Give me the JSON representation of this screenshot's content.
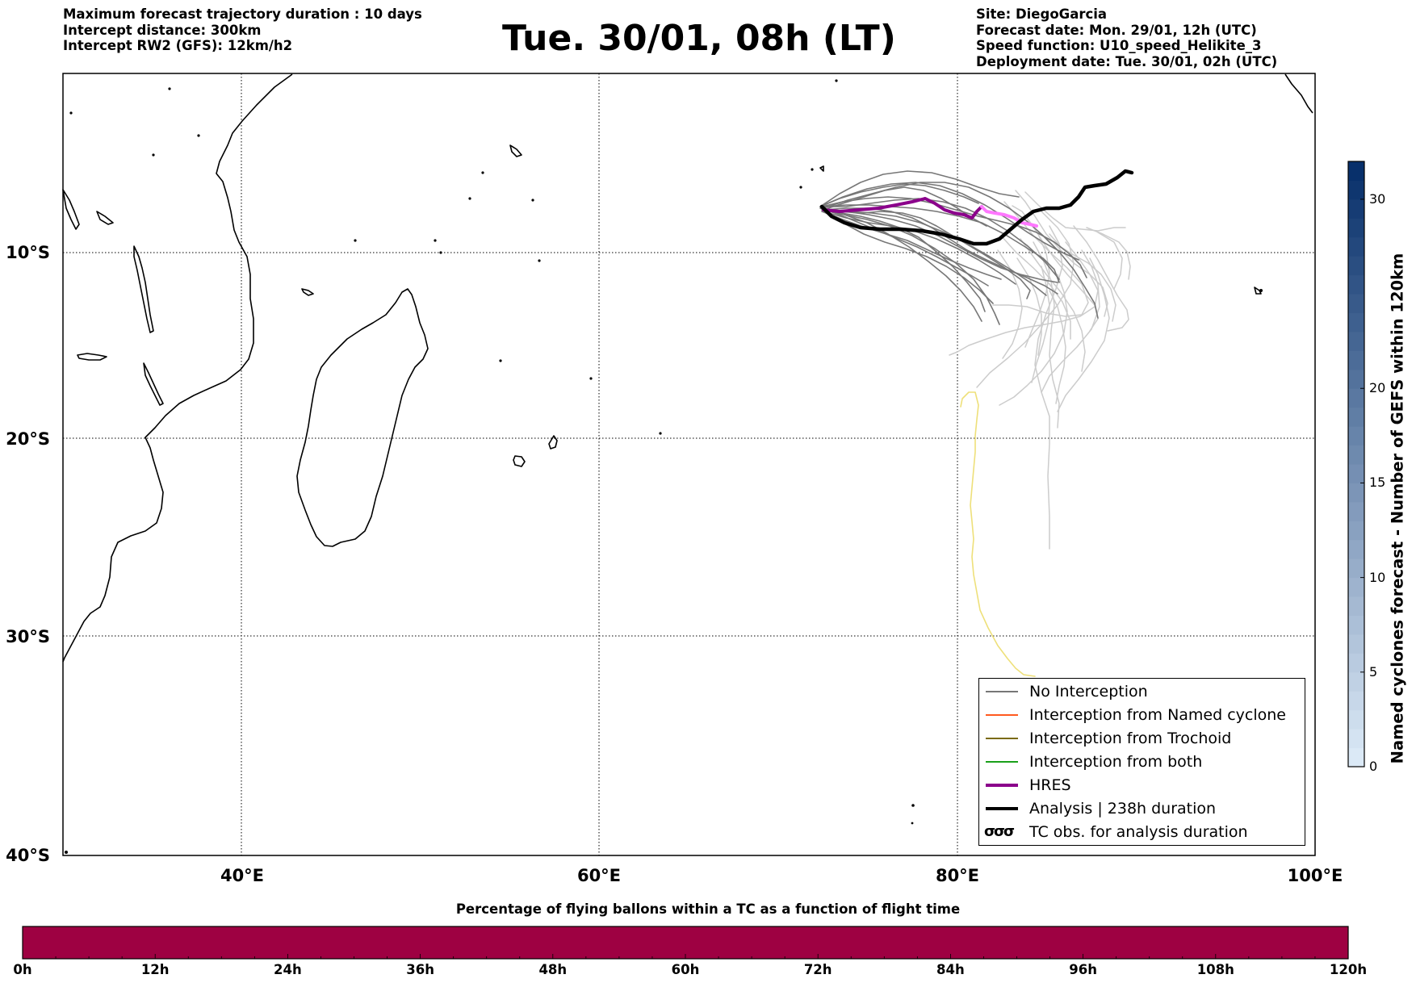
{
  "header": {
    "left_lines": [
      "Maximum forecast trajectory duration : 10 days",
      "Intercept distance: 300km",
      "Intercept RW2 (GFS):  12km/h2"
    ],
    "title": "Tue. 30/01, 08h (LT)",
    "right_lines": [
      "Site: DiegoGarcia",
      "Forecast date: Mon. 29/01, 12h (UTC)",
      "Speed function: U10_speed_Helikite_3",
      "Deployment date: Tue. 30/01, 02h (UTC)"
    ]
  },
  "map": {
    "lat_labels": [
      "10°S",
      "20°S",
      "30°S",
      "40°S"
    ],
    "lon_labels": [
      "40°E",
      "60°E",
      "80°E",
      "100°E"
    ],
    "extent": {
      "lon_min": 30,
      "lon_max": 100,
      "lat_top": -0.7,
      "lat_bottom": -40
    },
    "grid": true,
    "colors": {
      "no_interception": "#777777",
      "named_cyclone": "#ff5a1f",
      "trochoid": "#7a6a10",
      "both": "#1aa01a",
      "hres": "#8b008b",
      "hres_late": "#ff77ff",
      "analysis": "#000000",
      "late_tracks": "#cccccc",
      "tc_obs": "#eee07a"
    }
  },
  "legend": {
    "entries": [
      {
        "label": "No Interception",
        "color": "#777777",
        "style": "thin"
      },
      {
        "label": "Interception from Named cyclone",
        "color": "#ff5a1f",
        "style": "thin"
      },
      {
        "label": "Interception from Trochoid",
        "color": "#7a6a10",
        "style": "thin"
      },
      {
        "label": "Interception from both",
        "color": "#1aa01a",
        "style": "thin"
      },
      {
        "label": "HRES",
        "color": "#8b008b",
        "style": "thick"
      },
      {
        "label": "Analysis | 238h duration",
        "color": "#000000",
        "style": "thick"
      },
      {
        "label": "TC obs. for analysis duration",
        "color": "#000000",
        "style": "symbol",
        "symbol": "σσσ"
      }
    ]
  },
  "colorbar_right": {
    "label": "Named cyclones forecast - Number of GEFS within 120km",
    "ticks": [
      "0",
      "5",
      "10",
      "15",
      "20",
      "30"
    ],
    "tick_values": [
      0,
      5,
      10,
      15,
      20,
      30
    ],
    "max": 32,
    "color_low": "#dbe9f6",
    "color_high": "#08306b"
  },
  "colorbar_bottom": {
    "title": "Percentage of flying ballons within a TC as a function of flight time",
    "ticks": [
      "0h",
      "12h",
      "24h",
      "36h",
      "48h",
      "60h",
      "72h",
      "84h",
      "96h",
      "108h",
      "120h"
    ],
    "fill_color": "#9e0142"
  }
}
